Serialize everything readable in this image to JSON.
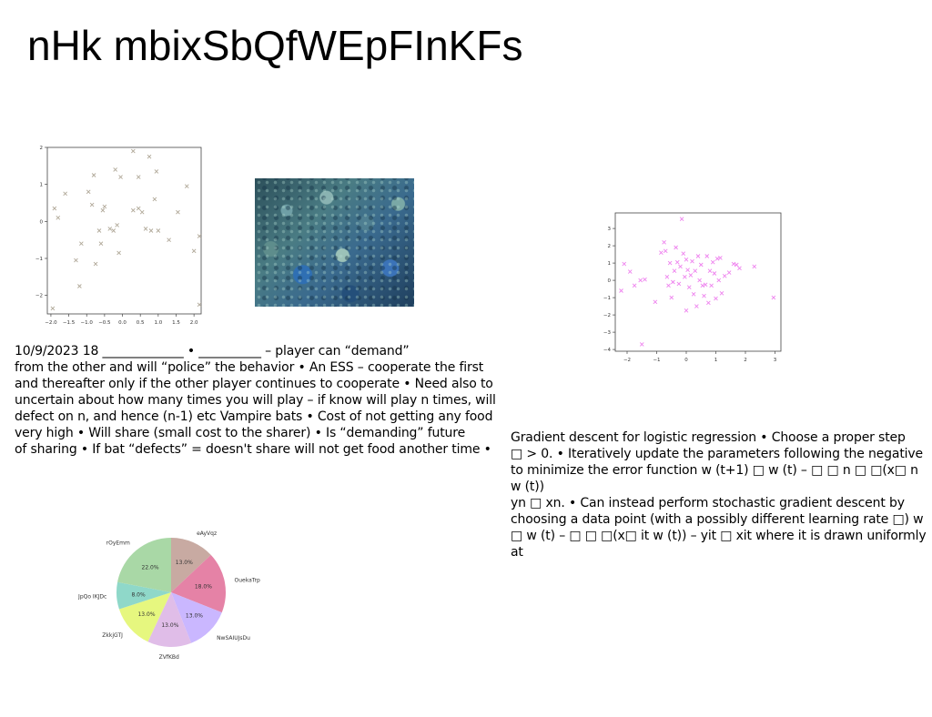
{
  "slide": {
    "title": "nHk mbixSbQfWEpFInKFs",
    "paragraph_left": "10/9/2023 18 _____________ • __________ – player can “demand”\nfrom the other  and will “police” the behavior • An ESS – cooperate the first\nand thereafter only if the other player continues to cooperate • Need also to\nuncertain about how many times you will play – if know will play n times, will\ndefect on n, and hence (n-1) etc Vampire bats • Cost of not getting any food\nvery  high • Will share (small cost to the sharer) • Is “demanding” future\nof sharing • If bat “defects” = doesn't share will not get food another time •",
    "paragraph_right": "Gradient descent for logistic regression • Choose a proper step\n□ > 0. • Iteratively update the parameters following the negative\nto minimize the error function w (t+1) □ w (t) – □ □ n □ □(x□ n w (t))\nyn □ xn. • Can instead perform stochastic gradient descent by\nchoosing a data point (with a possibly different learning rate □) w\n□ w (t) – □ □ □(x□ it w (t)) – yit □ xit where it is drawn uniformly at"
  },
  "chart_data": [
    {
      "type": "scatter",
      "marker": "x",
      "color": "#b0a898",
      "xlim": [
        -2.1,
        2.2
      ],
      "ylim": [
        -2.5,
        2.0
      ],
      "xticks": [
        -2.0,
        -1.5,
        -1.0,
        -0.5,
        0.0,
        0.5,
        1.0,
        1.5,
        2.0
      ],
      "xtick_labels": [
        "−2.0",
        "−1.5",
        "−1.0",
        "−0.5",
        "0.0",
        "0.5",
        "1.0",
        "1.5",
        "2.0"
      ],
      "yticks": [
        -2,
        -1,
        0,
        1,
        2
      ],
      "ytick_labels": [
        "−2",
        "−1",
        "0",
        "1",
        "2"
      ],
      "points": [
        [
          -1.9,
          0.35
        ],
        [
          -1.8,
          0.1
        ],
        [
          -1.95,
          -2.35
        ],
        [
          -1.6,
          0.75
        ],
        [
          -1.3,
          -1.05
        ],
        [
          -1.15,
          -0.6
        ],
        [
          -1.2,
          -1.75
        ],
        [
          -0.95,
          0.8
        ],
        [
          -0.85,
          0.45
        ],
        [
          -0.8,
          1.25
        ],
        [
          -0.75,
          -1.15
        ],
        [
          -0.65,
          -0.25
        ],
        [
          -0.6,
          -0.6
        ],
        [
          -0.55,
          0.3
        ],
        [
          -0.5,
          0.4
        ],
        [
          -0.35,
          -0.2
        ],
        [
          -0.25,
          -0.25
        ],
        [
          -0.2,
          1.4
        ],
        [
          -0.15,
          -0.1
        ],
        [
          -0.1,
          -0.85
        ],
        [
          -0.05,
          1.2
        ],
        [
          0.3,
          0.3
        ],
        [
          0.3,
          1.9
        ],
        [
          0.45,
          1.2
        ],
        [
          0.45,
          0.35
        ],
        [
          0.55,
          0.25
        ],
        [
          0.65,
          -0.2
        ],
        [
          0.75,
          1.75
        ],
        [
          0.8,
          -0.25
        ],
        [
          0.9,
          0.6
        ],
        [
          0.95,
          1.35
        ],
        [
          1.0,
          -0.25
        ],
        [
          1.3,
          -0.5
        ],
        [
          1.55,
          0.25
        ],
        [
          1.8,
          0.95
        ],
        [
          2.0,
          -0.8
        ],
        [
          2.15,
          -0.4
        ],
        [
          2.15,
          -2.25
        ]
      ]
    },
    {
      "type": "scatter",
      "marker": "x",
      "color": "#ee82ee",
      "xlim": [
        -2.4,
        3.2
      ],
      "ylim": [
        -4.1,
        3.9
      ],
      "xticks": [
        -2,
        -1,
        0,
        1,
        2,
        3
      ],
      "xtick_labels": [
        "−2",
        "−1",
        "0",
        "1",
        "2",
        "3"
      ],
      "yticks": [
        -4,
        -3,
        -2,
        -1,
        0,
        1,
        2,
        3
      ],
      "ytick_labels": [
        "−4",
        "−3",
        "−2",
        "−1",
        "0",
        "1",
        "2",
        "3"
      ],
      "points": [
        [
          -2.2,
          -0.6
        ],
        [
          -2.1,
          0.95
        ],
        [
          -1.9,
          0.5
        ],
        [
          -1.75,
          -0.3
        ],
        [
          -1.55,
          0.0
        ],
        [
          -1.5,
          -3.7
        ],
        [
          -1.4,
          0.05
        ],
        [
          -1.05,
          -1.25
        ],
        [
          -0.85,
          1.6
        ],
        [
          -0.75,
          2.2
        ],
        [
          -0.7,
          1.7
        ],
        [
          -0.65,
          0.2
        ],
        [
          -0.6,
          -0.3
        ],
        [
          -0.55,
          1.0
        ],
        [
          -0.5,
          -1.0
        ],
        [
          -0.45,
          -0.1
        ],
        [
          -0.4,
          0.55
        ],
        [
          -0.35,
          1.9
        ],
        [
          -0.3,
          1.05
        ],
        [
          -0.25,
          -0.2
        ],
        [
          -0.2,
          0.8
        ],
        [
          -0.15,
          3.55
        ],
        [
          -0.1,
          1.55
        ],
        [
          -0.05,
          0.2
        ],
        [
          0.0,
          1.2
        ],
        [
          0.0,
          -1.75
        ],
        [
          0.05,
          0.6
        ],
        [
          0.1,
          -0.4
        ],
        [
          0.15,
          0.3
        ],
        [
          0.2,
          1.1
        ],
        [
          0.25,
          -0.8
        ],
        [
          0.3,
          0.55
        ],
        [
          0.35,
          -1.5
        ],
        [
          0.4,
          1.4
        ],
        [
          0.45,
          0.0
        ],
        [
          0.5,
          0.9
        ],
        [
          0.55,
          -0.3
        ],
        [
          0.6,
          -0.9
        ],
        [
          0.65,
          -0.25
        ],
        [
          0.7,
          1.4
        ],
        [
          0.75,
          -1.3
        ],
        [
          0.8,
          0.55
        ],
        [
          0.85,
          -0.3
        ],
        [
          0.9,
          1.05
        ],
        [
          0.95,
          0.4
        ],
        [
          1.0,
          -1.05
        ],
        [
          1.05,
          1.25
        ],
        [
          1.1,
          0.0
        ],
        [
          1.15,
          1.3
        ],
        [
          1.2,
          -0.75
        ],
        [
          1.3,
          0.25
        ],
        [
          1.45,
          0.45
        ],
        [
          1.6,
          0.95
        ],
        [
          1.7,
          0.9
        ],
        [
          1.8,
          0.7
        ],
        [
          2.3,
          0.8
        ],
        [
          2.95,
          -1.0
        ]
      ]
    },
    {
      "type": "pie",
      "slices": [
        {
          "label": "eAyVqz",
          "value": 13.0,
          "pct_label": "13.0%",
          "color": "#c8aaa2"
        },
        {
          "label": "OuekaTrp",
          "value": 18.0,
          "pct_label": "18.0%",
          "color": "#e582a6"
        },
        {
          "label": "NwSAIUJsDu",
          "value": 13.0,
          "pct_label": "13.0%",
          "color": "#cab7ff"
        },
        {
          "label": "ZVfKBd",
          "value": 13.0,
          "pct_label": "13.0%",
          "color": "#e0bde8"
        },
        {
          "label": "ZkkjGTJ",
          "value": 13.0,
          "pct_label": "13.0%",
          "color": "#e6f77f"
        },
        {
          "label": "JpQo IKJDc",
          "value": 8.0,
          "pct_label": "8.0%",
          "color": "#8fd8c9"
        },
        {
          "label": "rOyEmm",
          "value": 22.0,
          "pct_label": "22.0%",
          "color": "#a9d8a6"
        }
      ]
    }
  ]
}
